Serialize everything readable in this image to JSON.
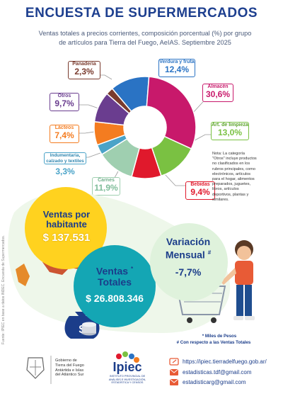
{
  "header": {
    "title": "ENCUESTA DE SUPERMERCADOS",
    "subtitle_line1": "Ventas totales a precios corrientes, composición porcentual (%) por grupo",
    "subtitle_line2": "de artículos para Tierra del Fuego, AeIAS. Septiembre 2025"
  },
  "side_note": "Fuente: IPIEC en base a datos INDEC. Encuesta de Supermercados.",
  "chart_data": {
    "type": "pie",
    "title": "",
    "slices": [
      {
        "name": "Verdura y fruta",
        "value": 12.4,
        "label": "12,4%",
        "color": "#2a73c4"
      },
      {
        "name": "Almacén",
        "value": 30.6,
        "label": "30,6%",
        "color": "#c8196b"
      },
      {
        "name": "Art. de limpieza",
        "value": 13.0,
        "label": "13,0%",
        "color": "#7ac142"
      },
      {
        "name": "Bebidas",
        "value": 9.4,
        "label": "9,4%",
        "color": "#e0192c"
      },
      {
        "name": "Carnes",
        "value": 11.9,
        "label": "11,9%",
        "color": "#9fcfb0"
      },
      {
        "name": "Indumentaria, calzado y textiles",
        "value": 3.3,
        "label": "3,3%",
        "color": "#4aa3c8"
      },
      {
        "name": "Lácteos",
        "value": 7.4,
        "label": "7,4%",
        "color": "#f47c20"
      },
      {
        "name": "Otros",
        "value": 9.7,
        "label": "9,7%",
        "color": "#6a3d8f"
      },
      {
        "name": "Panadería",
        "value": 2.3,
        "label": "2,3%",
        "color": "#7a3b2e"
      }
    ]
  },
  "labels": {
    "verdura": {
      "name": "Verdura y fruta",
      "value": "12,4%"
    },
    "almacen": {
      "name": "Almacén",
      "value": "30,6%"
    },
    "limpieza": {
      "name": "Art. de limpieza",
      "value": "13,0%"
    },
    "bebidas": {
      "name": "Bebidas",
      "value": "9,4%"
    },
    "carnes": {
      "name": "Carnes",
      "value": "11,9%"
    },
    "indumentaria_1": "Indumentaria,",
    "indumentaria_2": "calzado y textiles",
    "indumentaria_value": "3,3%",
    "lacteos": {
      "name": "Lácteos",
      "value": "7,4%"
    },
    "otros": {
      "name": "Otros",
      "value": "9,7%"
    },
    "panaderia": {
      "name": "Panadería",
      "value": "2,3%"
    }
  },
  "note": {
    "l1": "Nota: La categoría",
    "l2": "\"Otros\" incluye productos",
    "l3": "no clasificados en los",
    "l4": "rubros principales, como",
    "l5": "electrónicos, artículos",
    "l6": "para el hogar, alimentos",
    "l7": "preparados, juguetes,",
    "l8": "libros, artículos",
    "l9": "deportivos, plantas y",
    "l10": "similares."
  },
  "kpis": {
    "habitante_title_1": "Ventas por",
    "habitante_title_2": "habitante",
    "habitante_value": "$ 137.531",
    "totales_title_1": "Ventas",
    "totales_title_2": "Totales",
    "totales_mark": "*",
    "totales_value": "$ 26.808.346",
    "variacion_title_1": "Variación",
    "variacion_title_2": "Mensual",
    "variacion_mark": "#",
    "variacion_value": "-7,7%"
  },
  "footnotes": {
    "miles": "* Miles de Pesos",
    "respecto": "# Con respecto a las Ventas Totales"
  },
  "footer": {
    "gov_1": "Gobierno de",
    "gov_2": "Tierra del Fuego",
    "gov_3": "Antártida e Islas",
    "gov_4": "del Atlántico Sur",
    "ipiec_logo": "Ipiec",
    "ipiec_sub_1": "INSTITUTO PROVINCIAL DE",
    "ipiec_sub_2": "ANÁLISIS E INVESTIGACIÓN,",
    "ipiec_sub_3": "ESTADÍSTICA Y CENSOS",
    "web": "https://ipiec.tierradelfuego.gob.ar/",
    "email1": "estadisticas.tdf@gmail.com",
    "email2": "estadisticarg@gmail.com"
  },
  "colors": {
    "title_blue": "#1d3f8f",
    "kpi_yellow": "#ffd21f",
    "kpi_green": "#dff2dc",
    "kpi_teal": "#14a6b4"
  }
}
